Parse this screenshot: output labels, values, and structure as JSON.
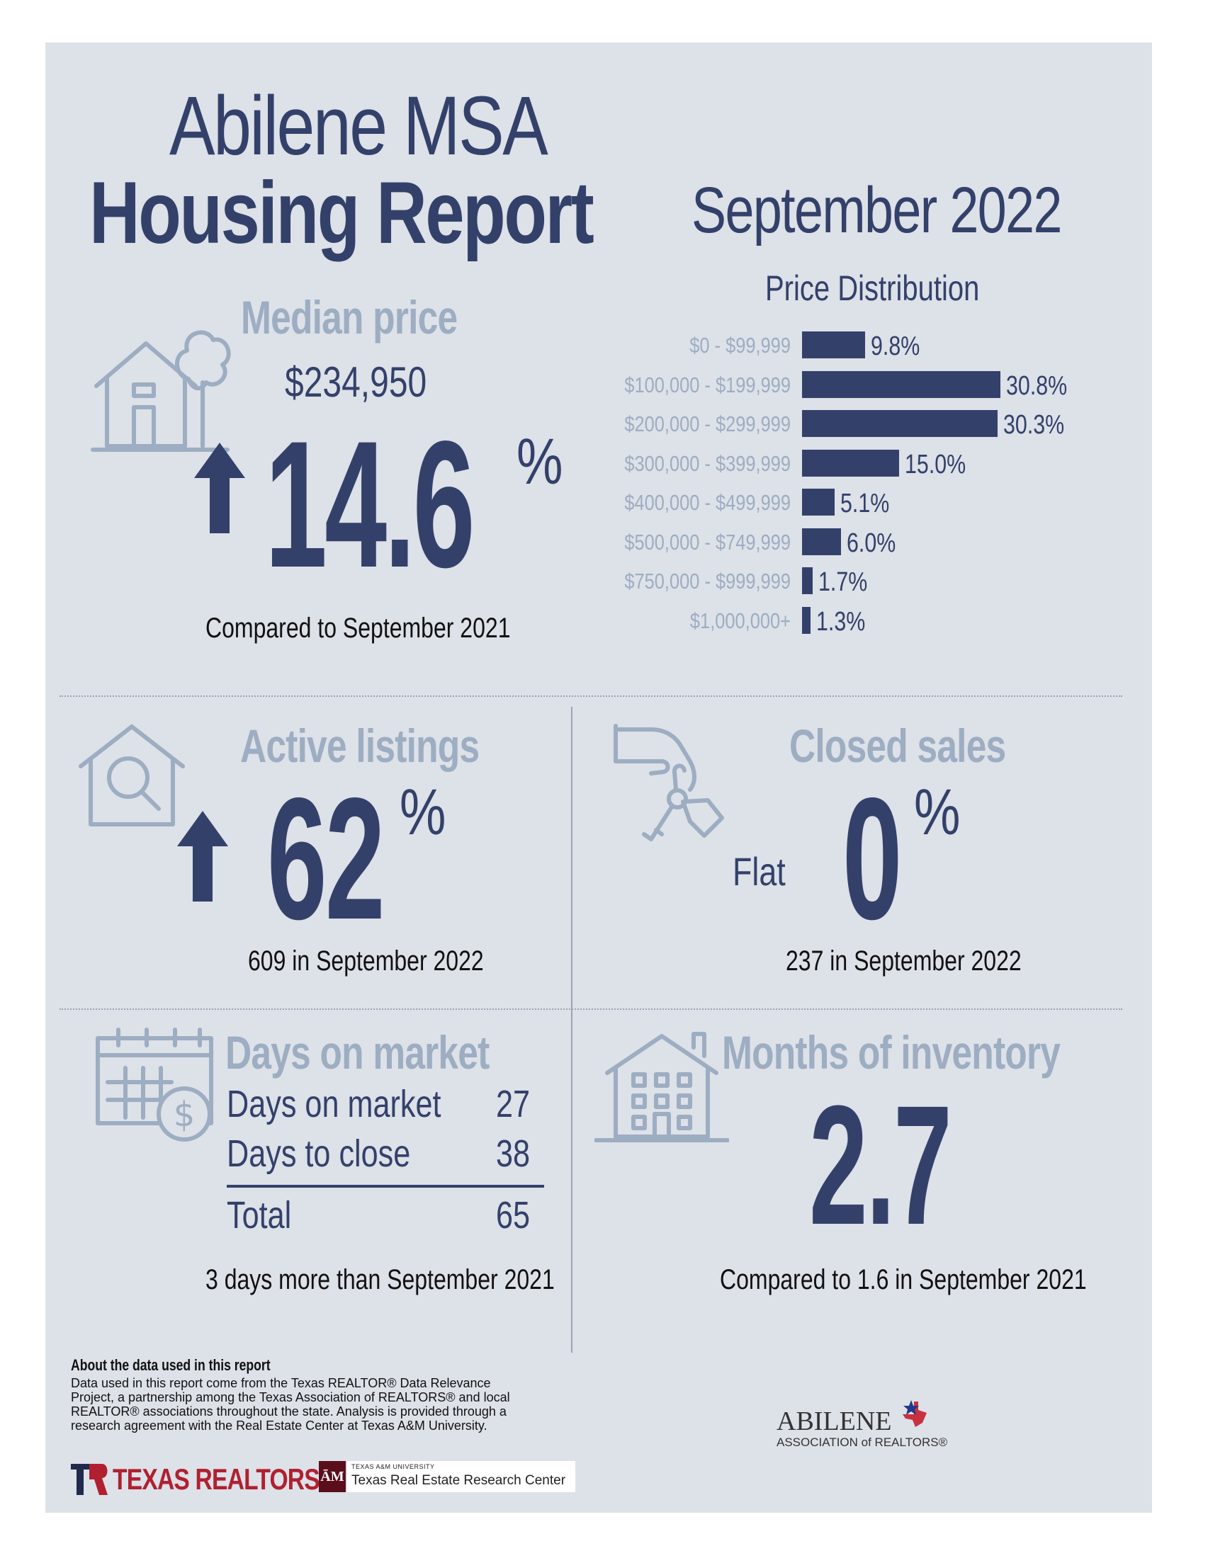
{
  "header": {
    "title_line1": "Abilene MSA",
    "title_line2": "Housing Report",
    "month": "September 2022"
  },
  "median_price": {
    "title": "Median price",
    "value": "$234,950",
    "change": "14.6",
    "unit": "%",
    "comparison": "Compared to September 2021"
  },
  "chart_data": {
    "type": "bar",
    "title": "Price Distribution",
    "categories": [
      "$0 - $99,999",
      "$100,000 - $199,999",
      "$200,000 - $299,999",
      "$300,000 - $399,999",
      "$400,000 - $499,999",
      "$500,000 - $749,999",
      "$750,000 - $999,999",
      "$1,000,000+"
    ],
    "values": [
      9.8,
      30.8,
      30.3,
      15.0,
      5.1,
      6.0,
      1.7,
      1.3
    ],
    "value_labels": [
      "9.8%",
      "30.8%",
      "30.3%",
      "15.0%",
      "5.1%",
      "6.0%",
      "1.7%",
      "1.3%"
    ],
    "orientation": "horizontal"
  },
  "active_listings": {
    "title": "Active listings",
    "change": "62",
    "unit": "%",
    "caption": "609 in September 2022"
  },
  "closed_sales": {
    "title": "Closed sales",
    "direction": "Flat",
    "change": "0",
    "unit": "%",
    "caption": "237 in September 2022"
  },
  "days_on_market": {
    "title": "Days on market",
    "rows": [
      {
        "label": "Days on market",
        "value": "27"
      },
      {
        "label": "Days to close",
        "value": "38"
      }
    ],
    "total_label": "Total",
    "total_value": "65",
    "caption": "3 days more than September 2021"
  },
  "months_inventory": {
    "title": "Months of inventory",
    "value": "2.7",
    "caption": "Compared to 1.6 in September 2021"
  },
  "footer": {
    "about_heading": "About the data used in this report",
    "about_text": "Data used in this report come from the Texas REALTOR® Data Relevance Project, a partnership among the Texas Association of REALTORS® and local REALTOR® associations throughout the state. Analysis is provided through a research agreement with the Real Estate Center at Texas A&M University.",
    "texas_realtors": "TEXAS REALTORS",
    "tamu_small": "TEXAS A&M UNIVERSITY",
    "tamu_name": "Texas Real Estate Research Center",
    "abilene_name": "ABILENE",
    "abilene_sub": "ASSOCIATION of REALTORS®"
  },
  "colors": {
    "navy": "#33416a",
    "muted": "#9dadc2",
    "panel": "#dde1e8",
    "realtors_red": "#b02030"
  }
}
